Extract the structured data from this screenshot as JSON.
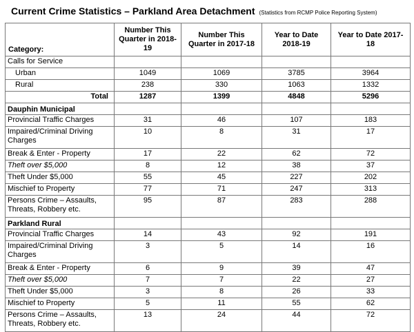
{
  "header": {
    "title": "Current Crime Statistics – Parkland Area Detachment",
    "subtitle": "(Statistics from RCMP Police Reporting System)"
  },
  "table": {
    "columns": [
      "Category:",
      "Number This Quarter in 2018-19",
      "Number This Quarter in 2017-18",
      "Year to Date 2018-19",
      "Year to Date 2017-18"
    ],
    "rows": [
      [
        "Calls for Service"
      ],
      [
        "Urban",
        1049,
        1069,
        3785,
        3964
      ],
      [
        "Rural",
        238,
        330,
        1063,
        1332
      ],
      [
        "Total",
        1287,
        1399,
        4848,
        5296
      ],
      [
        "Dauphin Municipal"
      ],
      [
        "Provincial Traffic Charges",
        31,
        46,
        107,
        183
      ],
      [
        "Impaired/Criminal Driving Charges",
        10,
        8,
        31,
        17
      ],
      [
        "Break & Enter - Property",
        17,
        22,
        62,
        72
      ],
      [
        "Theft over $5,000",
        8,
        12,
        38,
        37
      ],
      [
        "Theft Under $5,000",
        55,
        45,
        227,
        202
      ],
      [
        "Mischief to Property",
        77,
        71,
        247,
        313
      ],
      [
        "Persons Crime – Assaults, Threats, Robbery etc.",
        95,
        87,
        283,
        288
      ],
      [
        "Parkland Rural"
      ],
      [
        "Provincial Traffic Charges",
        14,
        43,
        92,
        191
      ],
      [
        "Impaired/Criminal Driving Charges",
        3,
        5,
        14,
        16
      ],
      [
        "Break & Enter - Property",
        6,
        9,
        39,
        47
      ],
      [
        "Theft over $5,000",
        7,
        7,
        22,
        27
      ],
      [
        "Theft Under $5,000",
        3,
        8,
        26,
        33
      ],
      [
        "Mischief to Property",
        5,
        11,
        55,
        62
      ],
      [
        "Persons Crime – Assaults, Threats, Robbery etc.",
        13,
        24,
        44,
        72
      ]
    ]
  }
}
